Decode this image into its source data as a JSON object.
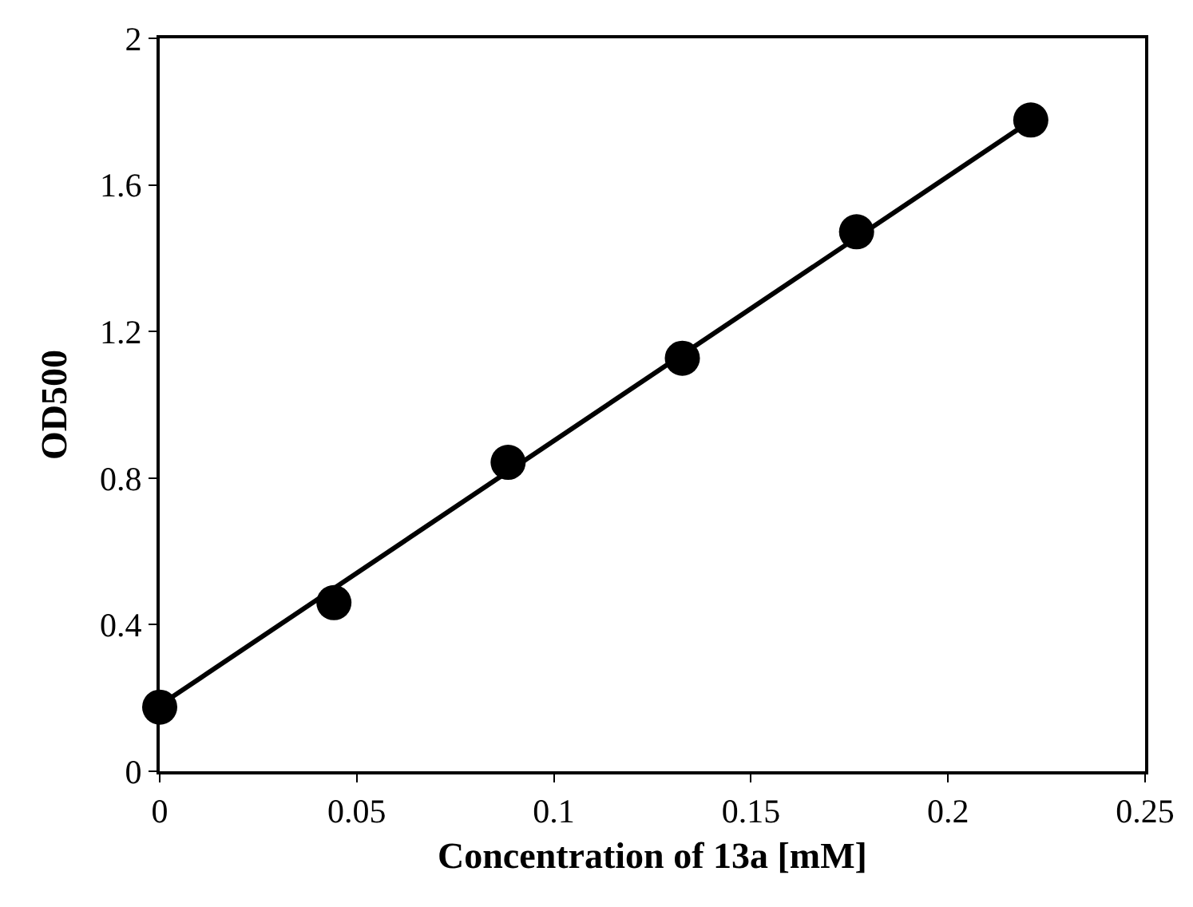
{
  "chart_data": {
    "type": "scatter",
    "xlabel": "Concentration of 13a [mM]",
    "ylabel": "OD500",
    "xlim": [
      0,
      0.25
    ],
    "xticks": [
      0,
      0.05,
      0.1,
      0.15,
      0.2,
      0.25
    ],
    "ylim": [
      0,
      2
    ],
    "yticks": [
      0,
      0.4,
      0.8,
      1.2,
      1.6,
      2
    ],
    "series": [
      {
        "marker": "circle",
        "color": "#000000",
        "x": [
          0,
          0.0442,
          0.0884,
          0.1326,
          0.1768,
          0.221
        ],
        "values": [
          0.175,
          0.46,
          0.843,
          1.127,
          1.472,
          1.777
        ]
      },
      {
        "type": "line",
        "marker": "none",
        "color": "#000000",
        "line_style": "solid",
        "x": [
          0,
          0.221
        ],
        "values": [
          0.18,
          1.775
        ]
      }
    ]
  }
}
